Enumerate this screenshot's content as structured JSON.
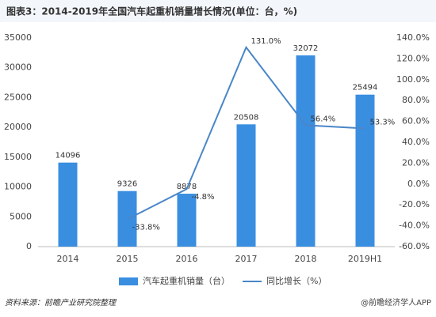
{
  "chart_data": {
    "type": "bar_line",
    "title": "图表3：2014-2019年全国汽车起重机销量增长情况(单位：台，%)",
    "categories": [
      "2014",
      "2015",
      "2016",
      "2017",
      "2018",
      "2019H1"
    ],
    "series": [
      {
        "name": "汽车起重机销量（台）",
        "color": "#3a8ee0",
        "type": "bar",
        "values": [
          14096,
          9326,
          8878,
          20508,
          32072,
          25494
        ]
      },
      {
        "name": "同比增长（%）",
        "color": "#4a86c8",
        "type": "line",
        "axis": "y2",
        "values": [
          null,
          -33.8,
          -4.8,
          131.0,
          56.4,
          53.3
        ],
        "value_labels": [
          null,
          "-33.8%",
          "-4.8%",
          "131.0%",
          "56.4%",
          "53.3%"
        ]
      }
    ],
    "ylim": [
      0,
      35000
    ],
    "yticks": [
      0,
      5000,
      10000,
      15000,
      20000,
      25000,
      30000,
      35000
    ],
    "y2lim": [
      -60,
      140
    ],
    "y2ticks": [
      {
        "value": -60,
        "label": "-60.0%"
      },
      {
        "value": -40,
        "label": "-40.0%"
      },
      {
        "value": -20,
        "label": "-20.0%"
      },
      {
        "value": 0,
        "label": "0.0%"
      },
      {
        "value": 20,
        "label": "20.0%"
      },
      {
        "value": 40,
        "label": "40.0%"
      },
      {
        "value": 60,
        "label": "60.0%"
      },
      {
        "value": 80,
        "label": "80.0%"
      },
      {
        "value": 100,
        "label": "100.0%"
      },
      {
        "value": 120,
        "label": "120.0%"
      },
      {
        "value": 140,
        "label": "140.0%"
      }
    ],
    "grid": false,
    "legend": "bottom",
    "source": "资料来源：前瞻产业研究院整理",
    "watermark": "@前瞻经济学人APP"
  }
}
